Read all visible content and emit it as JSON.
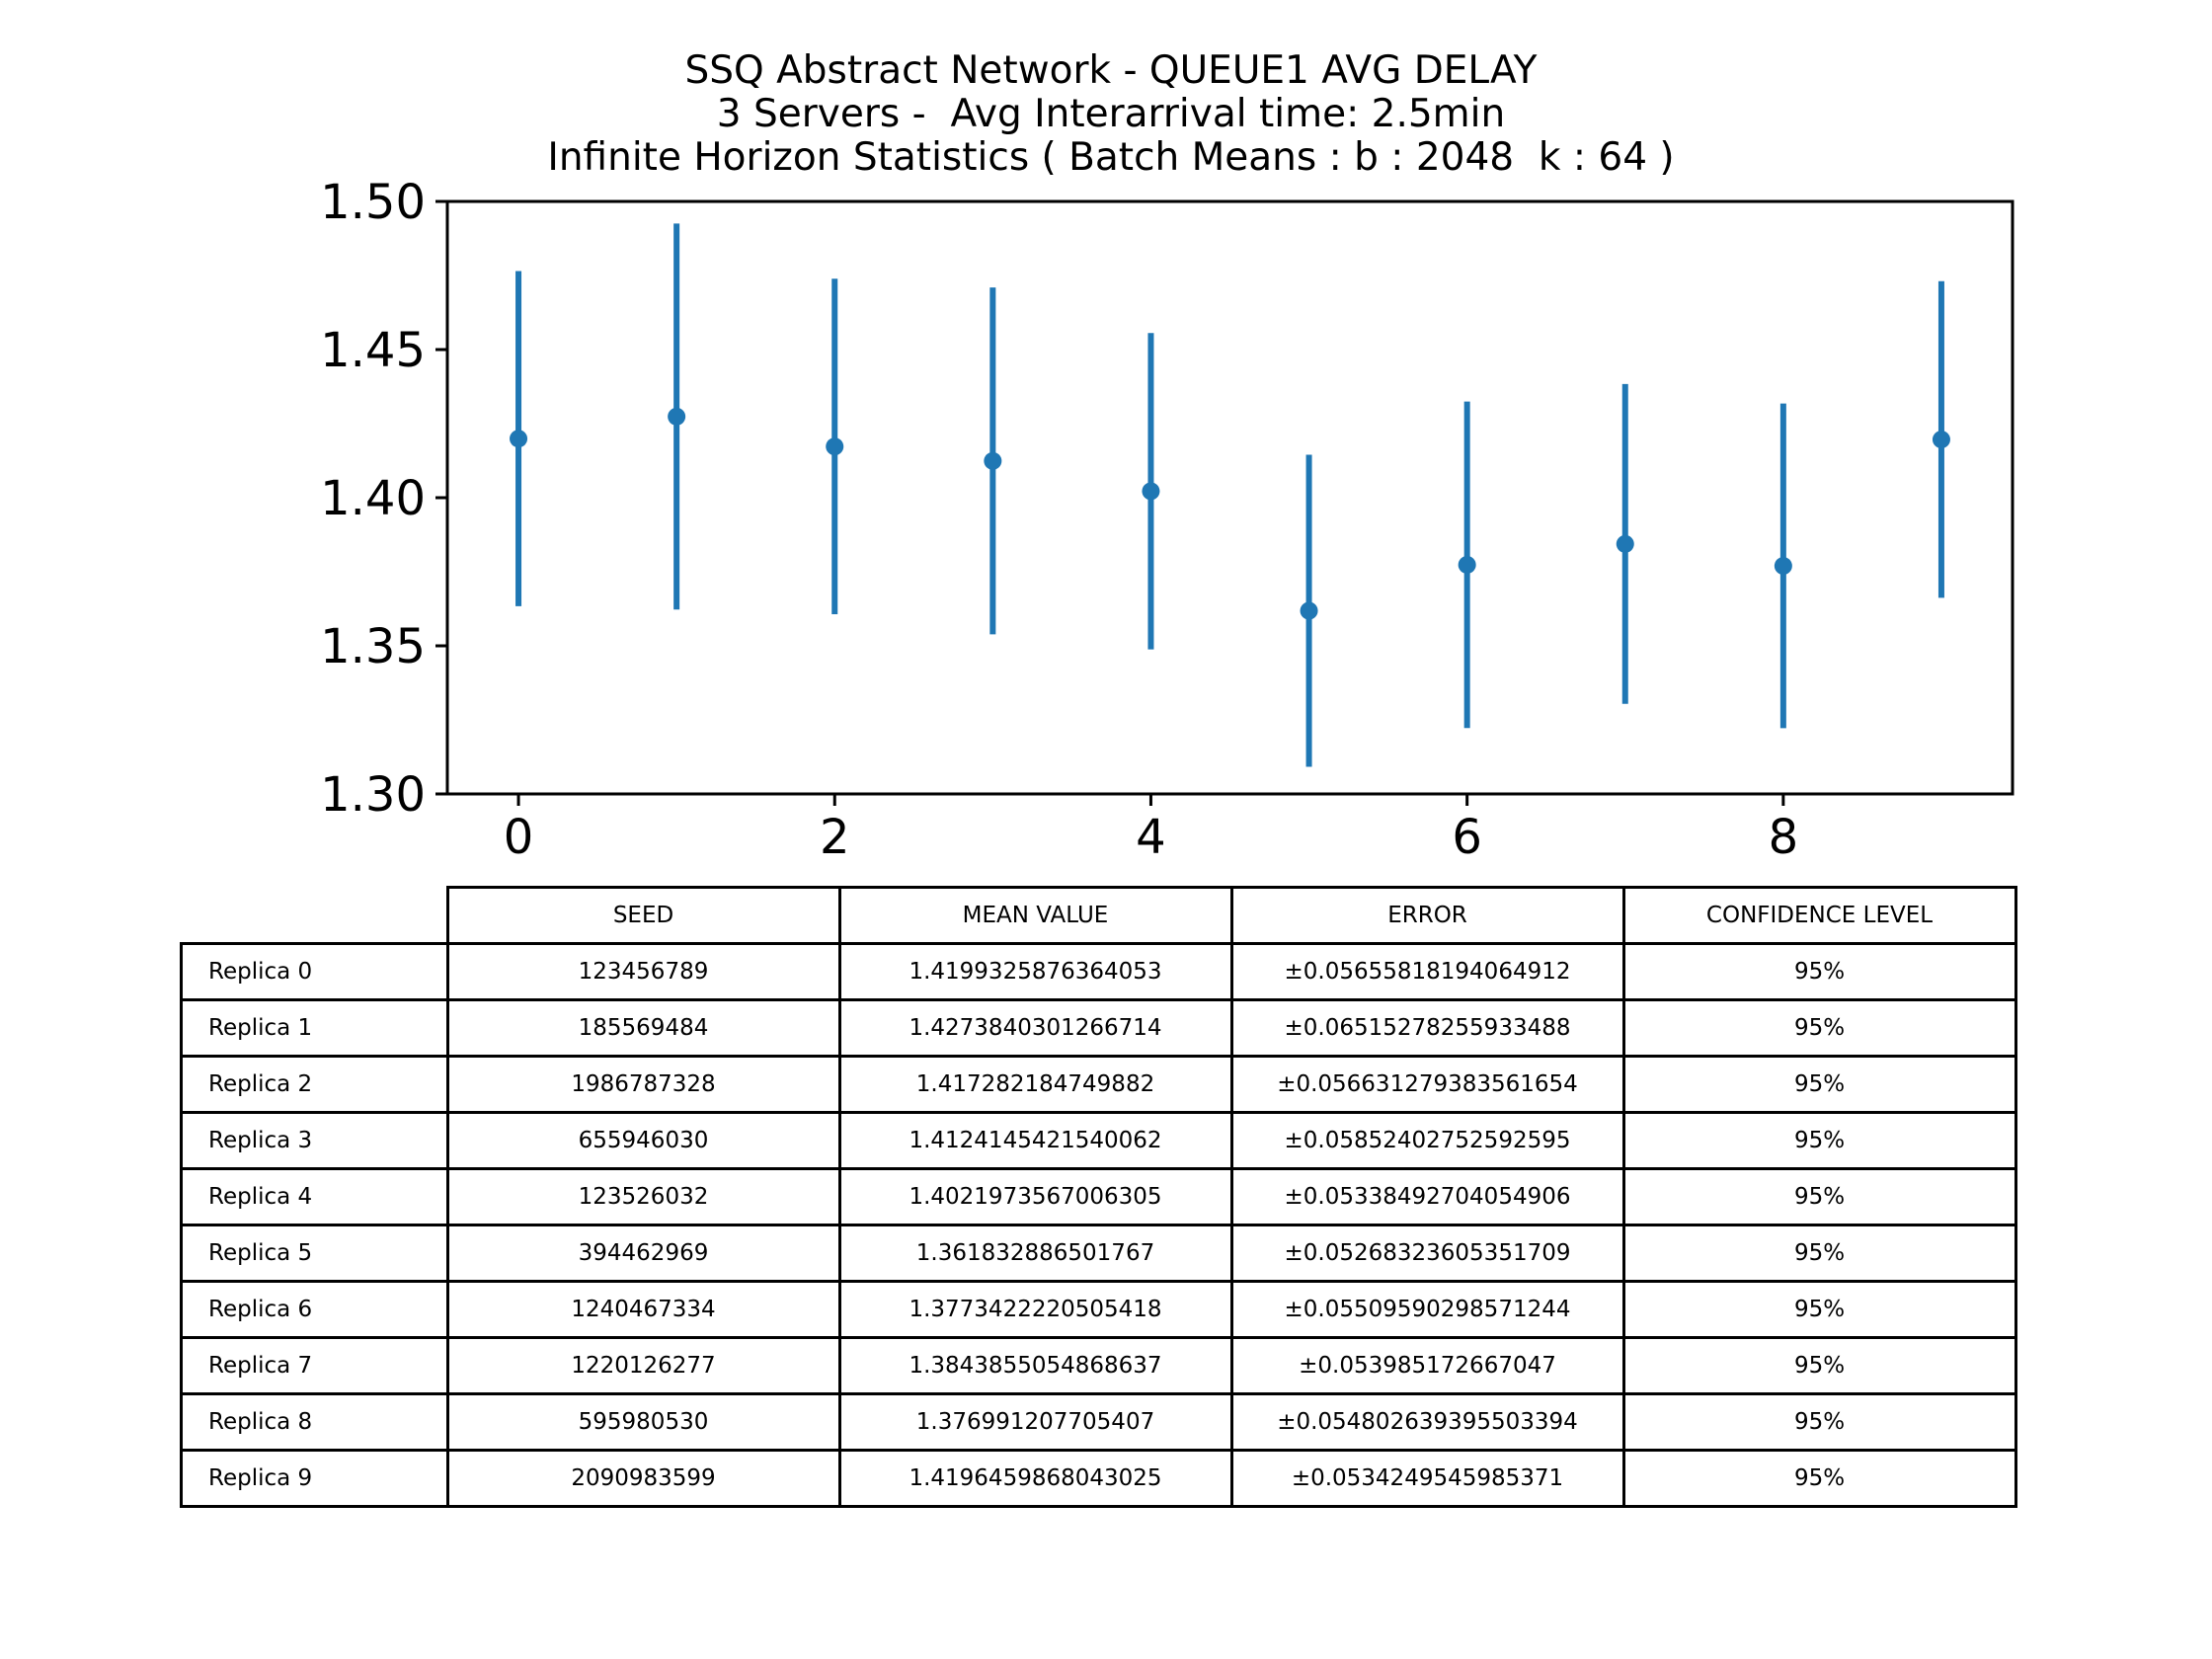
{
  "chart_data": {
    "type": "errorbar",
    "title_lines": [
      "SSQ Abstract Network - QUEUE1 AVG DELAY",
      "3 Servers -  Avg Interarrival time: 2.5min",
      "Infinite Horizon Statistics ( Batch Means : b : 2048  k : 64 )"
    ],
    "xlabel": "",
    "ylabel": "",
    "xlim": [
      -0.45,
      9.45
    ],
    "ylim": [
      1.3,
      1.5
    ],
    "x_ticks": [
      "0",
      "2",
      "4",
      "6",
      "8"
    ],
    "x_tick_values": [
      0,
      2,
      4,
      6,
      8
    ],
    "y_ticks": [
      "1.30",
      "1.35",
      "1.40",
      "1.45",
      "1.50"
    ],
    "y_tick_values": [
      1.3,
      1.35,
      1.4,
      1.45,
      1.5
    ],
    "grid": false,
    "color": "#1f77b4",
    "x": [
      0,
      1,
      2,
      3,
      4,
      5,
      6,
      7,
      8,
      9
    ],
    "y": [
      1.4199325876364053,
      1.4273840301266714,
      1.417282184749882,
      1.4124145421540062,
      1.4021973567006305,
      1.361832886501767,
      1.3773422220505418,
      1.3843855054868637,
      1.376991207705407,
      1.4196459868043025
    ],
    "yerr": [
      0.05655818194064912,
      0.06515278255933488,
      0.056631279383561654,
      0.05852402752592595,
      0.05338492704054906,
      0.05268323605351709,
      0.05509590298571244,
      0.053985172667047,
      0.054802639395503394,
      0.0534249545985371
    ]
  },
  "table": {
    "columns": [
      "SEED",
      "MEAN VALUE",
      "ERROR",
      "CONFIDENCE LEVEL"
    ],
    "rows": [
      {
        "label": "Replica 0",
        "cells": [
          "123456789",
          "1.4199325876364053",
          "±0.05655818194064912",
          "95%"
        ]
      },
      {
        "label": "Replica 1",
        "cells": [
          "185569484",
          "1.4273840301266714",
          "±0.06515278255933488",
          "95%"
        ]
      },
      {
        "label": "Replica 2",
        "cells": [
          "1986787328",
          "1.417282184749882",
          "±0.056631279383561654",
          "95%"
        ]
      },
      {
        "label": "Replica 3",
        "cells": [
          "655946030",
          "1.4124145421540062",
          "±0.05852402752592595",
          "95%"
        ]
      },
      {
        "label": "Replica 4",
        "cells": [
          "123526032",
          "1.4021973567006305",
          "±0.05338492704054906",
          "95%"
        ]
      },
      {
        "label": "Replica 5",
        "cells": [
          "394462969",
          "1.361832886501767",
          "±0.05268323605351709",
          "95%"
        ]
      },
      {
        "label": "Replica 6",
        "cells": [
          "1240467334",
          "1.3773422220505418",
          "±0.05509590298571244",
          "95%"
        ]
      },
      {
        "label": "Replica 7",
        "cells": [
          "1220126277",
          "1.3843855054868637",
          "±0.053985172667047",
          "95%"
        ]
      },
      {
        "label": "Replica 8",
        "cells": [
          "595980530",
          "1.376991207705407",
          "±0.054802639395503394",
          "95%"
        ]
      },
      {
        "label": "Replica 9",
        "cells": [
          "2090983599",
          "1.4196459868043025",
          "±0.0534249545985371",
          "95%"
        ]
      }
    ]
  }
}
